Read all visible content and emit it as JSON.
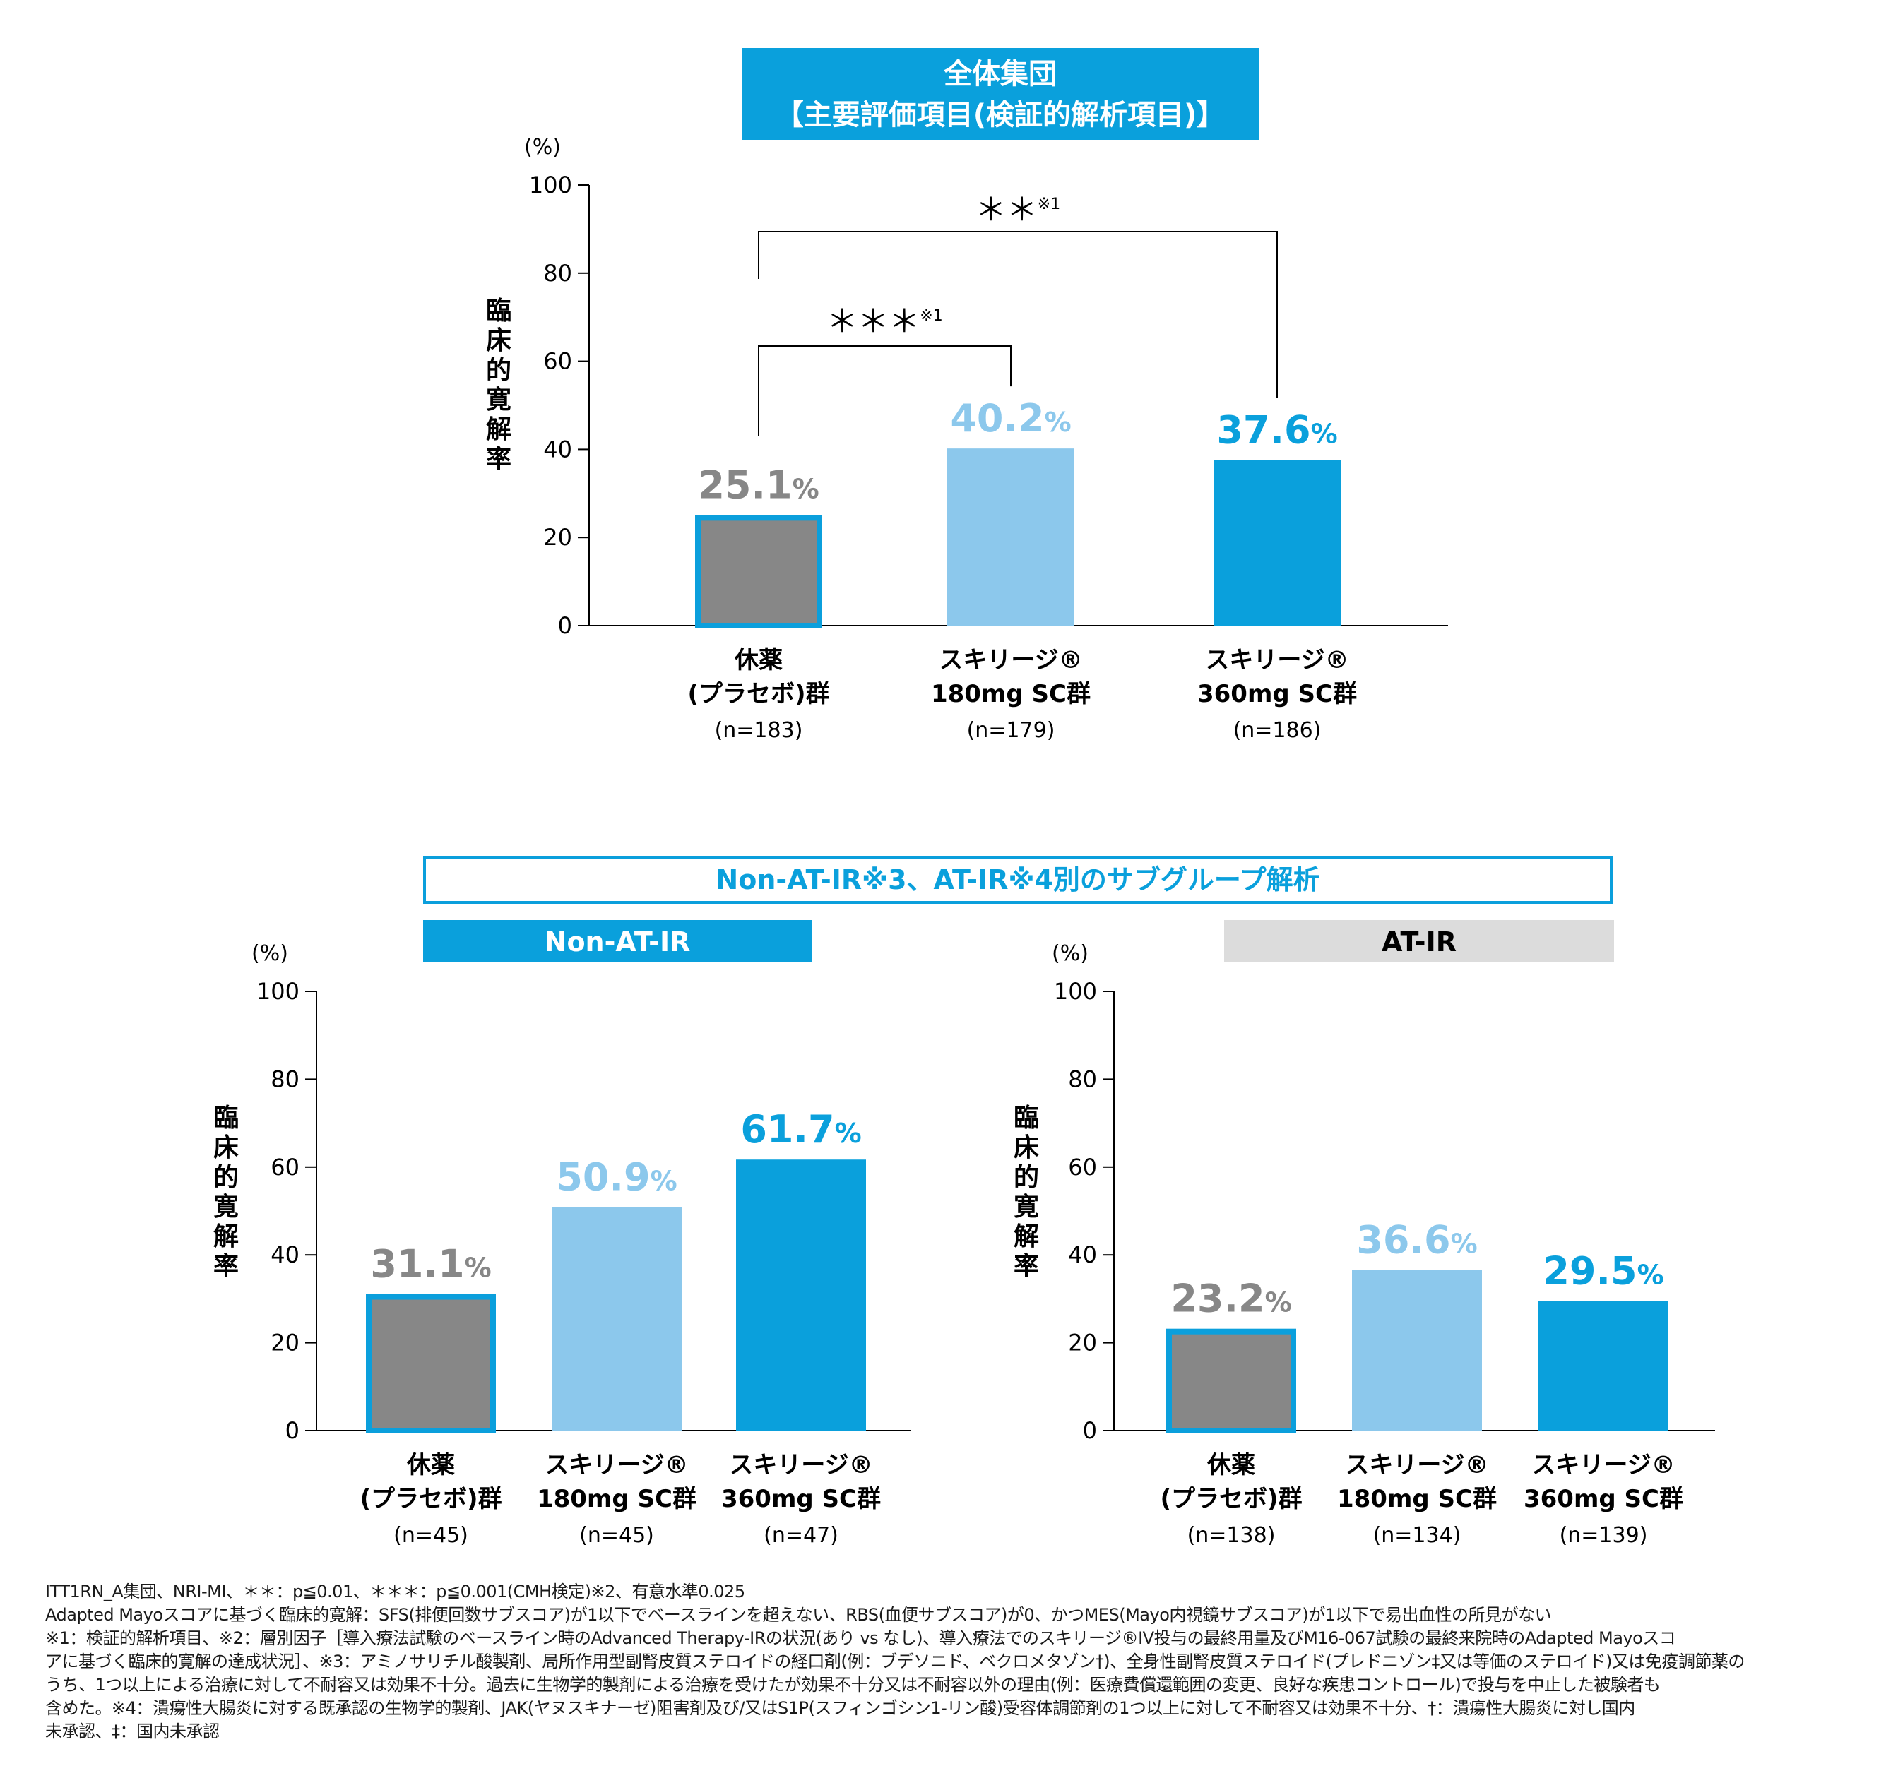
{
  "top_banner": {
    "line1": "全体集団",
    "line2": "【主要評価項目(検証的解析項目)】"
  },
  "subgroup_banner": "Non-AT-IR※3、AT-IR※4別のサブグループ解析",
  "colors": {
    "placebo": "#878787",
    "border": "#0b9fdc",
    "skyrizi180": "#8cc8ec",
    "skyrizi360": "#0aa0dc",
    "at_ir_tab": "#dcdcdc"
  },
  "chart_data": [
    {
      "type": "bar",
      "title": "全体集団",
      "ylabel": "臨床的寛解率",
      "unit_label": "(%)",
      "ylim": [
        0,
        100
      ],
      "yticks": [
        "0",
        "20",
        "40",
        "60",
        "80",
        "100"
      ],
      "categories": [
        {
          "l1": "休薬",
          "l2": "(プラセボ)群",
          "n": "(n=183)"
        },
        {
          "l1": "スキリージ®",
          "l2": "180mg SC群",
          "n": "(n=179)"
        },
        {
          "l1": "スキリージ®",
          "l2": "360mg SC群",
          "n": "(n=186)"
        }
      ],
      "values": [
        25.1,
        40.2,
        37.6
      ],
      "value_labels": [
        "25.1",
        "40.2",
        "37.6"
      ],
      "value_suffix": "%",
      "significance": [
        {
          "from": 0,
          "to": 1,
          "label": "＊＊＊※1"
        },
        {
          "from": 0,
          "to": 2,
          "label": "＊＊※1"
        }
      ]
    },
    {
      "type": "bar",
      "title": "Non-AT-IR",
      "ylabel": "臨床的寛解率",
      "unit_label": "(%)",
      "ylim": [
        0,
        100
      ],
      "yticks": [
        "0",
        "20",
        "40",
        "60",
        "80",
        "100"
      ],
      "categories": [
        {
          "l1": "休薬",
          "l2": "(プラセボ)群",
          "n": "(n=45)"
        },
        {
          "l1": "スキリージ®",
          "l2": "180mg SC群",
          "n": "(n=45)"
        },
        {
          "l1": "スキリージ®",
          "l2": "360mg SC群",
          "n": "(n=47)"
        }
      ],
      "values": [
        31.1,
        50.9,
        61.7
      ],
      "value_labels": [
        "31.1",
        "50.9",
        "61.7"
      ],
      "value_suffix": "%"
    },
    {
      "type": "bar",
      "title": "AT-IR",
      "ylabel": "臨床的寛解率",
      "unit_label": "(%)",
      "ylim": [
        0,
        100
      ],
      "yticks": [
        "0",
        "20",
        "40",
        "60",
        "80",
        "100"
      ],
      "categories": [
        {
          "l1": "休薬",
          "l2": "(プラセボ)群",
          "n": "(n=138)"
        },
        {
          "l1": "スキリージ®",
          "l2": "180mg SC群",
          "n": "(n=134)"
        },
        {
          "l1": "スキリージ®",
          "l2": "360mg SC群",
          "n": "(n=139)"
        }
      ],
      "values": [
        23.2,
        36.6,
        29.5
      ],
      "value_labels": [
        "23.2",
        "36.6",
        "29.5"
      ],
      "value_suffix": "%"
    }
  ],
  "footnotes": [
    "ITT1RN_A集団、NRI-MI、＊＊：p≦0.01、＊＊＊：p≦0.001(CMH検定)※2、有意水準0.025",
    "Adapted Mayoスコアに基づく臨床的寛解：SFS(排便回数サブスコア)が1以下でベースラインを超えない、RBS(血便サブスコア)が0、かつMES(Mayo内視鏡サブスコア)が1以下で易出血性の所見がない",
    "※1：検証的解析項目、※2：層別因子［導入療法試験のベースライン時のAdvanced Therapy-IRの状況(あり vs なし)、導入療法でのスキリージ®IV投与の最終用量及びM16-067試験の最終来院時のAdapted Mayoスコ",
    "アに基づく臨床的寛解の達成状況］、※3：アミノサリチル酸製剤、局所作用型副腎皮質ステロイドの経口剤(例：ブデソニド、ベクロメタゾン†)、全身性副腎皮質ステロイド(プレドニゾン‡又は等価のステロイド)又は免疫調節薬の",
    "うち、1つ以上による治療に対して不耐容又は効果不十分。過去に生物学的製剤による治療を受けたが効果不十分又は不耐容以外の理由(例：医療費償還範囲の変更、良好な疾患コントロール)で投与を中止した被験者も",
    "含めた。※4：潰瘍性大腸炎に対する既承認の生物学的製剤、JAK(ヤヌスキナーゼ)阻害剤及び/又はS1P(スフィンゴシン1-リン酸)受容体調節剤の1つ以上に対して不耐容又は効果不十分、†：潰瘍性大腸炎に対し国内",
    "未承認、‡：国内未承認"
  ]
}
